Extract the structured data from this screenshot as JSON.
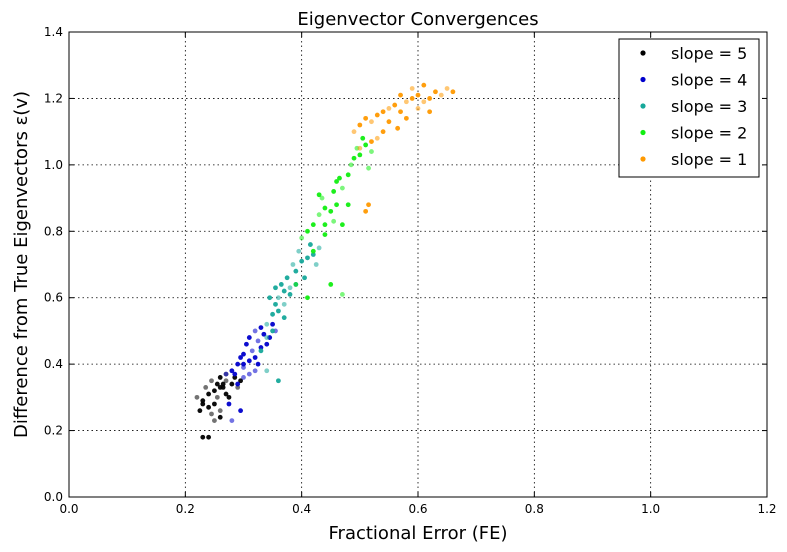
{
  "chart_data": {
    "type": "scatter",
    "title": "Eigenvector Convergences",
    "xlabel": "Fractional Error (FE)",
    "ylabel": "Difference from True Eigenvectors ε(v)",
    "xlim": [
      0.0,
      1.2
    ],
    "ylim": [
      0.0,
      1.4
    ],
    "x_ticks": [
      "0.0",
      "0.2",
      "0.4",
      "0.6",
      "0.8",
      "1.0",
      "1.2"
    ],
    "y_ticks": [
      "0.0",
      "0.2",
      "0.4",
      "0.6",
      "0.8",
      "1.0",
      "1.2",
      "1.4"
    ],
    "grid": true,
    "legend_position": "top-right",
    "series": [
      {
        "name": "slope = 5",
        "color": "#000000",
        "points": [
          [
            0.22,
            0.3
          ],
          [
            0.23,
            0.29
          ],
          [
            0.24,
            0.31
          ],
          [
            0.235,
            0.33
          ],
          [
            0.25,
            0.32
          ],
          [
            0.26,
            0.33
          ],
          [
            0.245,
            0.35
          ],
          [
            0.255,
            0.34
          ],
          [
            0.265,
            0.33
          ],
          [
            0.27,
            0.35
          ],
          [
            0.28,
            0.34
          ],
          [
            0.25,
            0.28
          ],
          [
            0.26,
            0.26
          ],
          [
            0.24,
            0.27
          ],
          [
            0.23,
            0.28
          ],
          [
            0.255,
            0.3
          ],
          [
            0.27,
            0.31
          ],
          [
            0.285,
            0.36
          ],
          [
            0.29,
            0.33
          ],
          [
            0.295,
            0.35
          ],
          [
            0.26,
            0.36
          ],
          [
            0.27,
            0.37
          ],
          [
            0.23,
            0.18
          ],
          [
            0.24,
            0.18
          ],
          [
            0.25,
            0.23
          ],
          [
            0.26,
            0.24
          ],
          [
            0.225,
            0.26
          ],
          [
            0.245,
            0.25
          ],
          [
            0.275,
            0.3
          ],
          [
            0.265,
            0.34
          ]
        ]
      },
      {
        "name": "slope = 4",
        "color": "#0000cc",
        "points": [
          [
            0.27,
            0.37
          ],
          [
            0.28,
            0.38
          ],
          [
            0.29,
            0.4
          ],
          [
            0.3,
            0.39
          ],
          [
            0.31,
            0.41
          ],
          [
            0.3,
            0.43
          ],
          [
            0.315,
            0.44
          ],
          [
            0.32,
            0.42
          ],
          [
            0.305,
            0.46
          ],
          [
            0.325,
            0.47
          ],
          [
            0.33,
            0.45
          ],
          [
            0.31,
            0.48
          ],
          [
            0.32,
            0.5
          ],
          [
            0.335,
            0.49
          ],
          [
            0.33,
            0.51
          ],
          [
            0.3,
            0.36
          ],
          [
            0.29,
            0.34
          ],
          [
            0.285,
            0.37
          ],
          [
            0.28,
            0.23
          ],
          [
            0.295,
            0.26
          ],
          [
            0.275,
            0.28
          ],
          [
            0.32,
            0.38
          ],
          [
            0.34,
            0.46
          ],
          [
            0.345,
            0.48
          ],
          [
            0.31,
            0.37
          ],
          [
            0.295,
            0.42
          ],
          [
            0.35,
            0.52
          ],
          [
            0.355,
            0.5
          ],
          [
            0.3,
            0.4
          ],
          [
            0.325,
            0.4
          ]
        ]
      },
      {
        "name": "slope = 3",
        "color": "#16a89a",
        "points": [
          [
            0.34,
            0.52
          ],
          [
            0.35,
            0.55
          ],
          [
            0.355,
            0.58
          ],
          [
            0.36,
            0.6
          ],
          [
            0.37,
            0.62
          ],
          [
            0.365,
            0.64
          ],
          [
            0.38,
            0.63
          ],
          [
            0.375,
            0.66
          ],
          [
            0.39,
            0.68
          ],
          [
            0.385,
            0.7
          ],
          [
            0.4,
            0.71
          ],
          [
            0.41,
            0.72
          ],
          [
            0.395,
            0.74
          ],
          [
            0.42,
            0.73
          ],
          [
            0.415,
            0.76
          ],
          [
            0.43,
            0.75
          ],
          [
            0.36,
            0.56
          ],
          [
            0.345,
            0.6
          ],
          [
            0.37,
            0.58
          ],
          [
            0.38,
            0.61
          ],
          [
            0.35,
            0.5
          ],
          [
            0.34,
            0.48
          ],
          [
            0.33,
            0.44
          ],
          [
            0.36,
            0.35
          ],
          [
            0.34,
            0.38
          ],
          [
            0.405,
            0.66
          ],
          [
            0.39,
            0.64
          ],
          [
            0.425,
            0.7
          ],
          [
            0.37,
            0.54
          ],
          [
            0.355,
            0.63
          ]
        ]
      },
      {
        "name": "slope = 2",
        "color": "#11ee11",
        "points": [
          [
            0.4,
            0.78
          ],
          [
            0.41,
            0.8
          ],
          [
            0.42,
            0.82
          ],
          [
            0.43,
            0.85
          ],
          [
            0.44,
            0.87
          ],
          [
            0.45,
            0.86
          ],
          [
            0.435,
            0.9
          ],
          [
            0.455,
            0.92
          ],
          [
            0.46,
            0.88
          ],
          [
            0.47,
            0.93
          ],
          [
            0.465,
            0.96
          ],
          [
            0.48,
            0.97
          ],
          [
            0.485,
            1.0
          ],
          [
            0.49,
            1.02
          ],
          [
            0.5,
            1.03
          ],
          [
            0.495,
            1.05
          ],
          [
            0.51,
            1.06
          ],
          [
            0.505,
            1.08
          ],
          [
            0.515,
            0.99
          ],
          [
            0.42,
            0.74
          ],
          [
            0.44,
            0.79
          ],
          [
            0.455,
            0.83
          ],
          [
            0.47,
            0.82
          ],
          [
            0.48,
            0.88
          ],
          [
            0.39,
            0.64
          ],
          [
            0.41,
            0.6
          ],
          [
            0.45,
            0.64
          ],
          [
            0.47,
            0.61
          ],
          [
            0.43,
            0.91
          ],
          [
            0.46,
            0.95
          ],
          [
            0.52,
            1.04
          ],
          [
            0.44,
            0.82
          ]
        ]
      },
      {
        "name": "slope = 1",
        "color": "#ff9900",
        "points": [
          [
            0.49,
            1.1
          ],
          [
            0.5,
            1.12
          ],
          [
            0.51,
            1.14
          ],
          [
            0.52,
            1.13
          ],
          [
            0.53,
            1.15
          ],
          [
            0.54,
            1.16
          ],
          [
            0.55,
            1.17
          ],
          [
            0.56,
            1.18
          ],
          [
            0.57,
            1.16
          ],
          [
            0.58,
            1.19
          ],
          [
            0.59,
            1.2
          ],
          [
            0.6,
            1.21
          ],
          [
            0.61,
            1.19
          ],
          [
            0.62,
            1.2
          ],
          [
            0.63,
            1.22
          ],
          [
            0.64,
            1.21
          ],
          [
            0.55,
            1.13
          ],
          [
            0.54,
            1.1
          ],
          [
            0.53,
            1.08
          ],
          [
            0.565,
            1.11
          ],
          [
            0.58,
            1.14
          ],
          [
            0.6,
            1.17
          ],
          [
            0.62,
            1.16
          ],
          [
            0.52,
            1.07
          ],
          [
            0.5,
            1.05
          ],
          [
            0.515,
            0.88
          ],
          [
            0.51,
            0.86
          ],
          [
            0.65,
            1.23
          ],
          [
            0.66,
            1.22
          ],
          [
            0.57,
            1.21
          ],
          [
            0.59,
            1.23
          ],
          [
            0.61,
            1.24
          ]
        ]
      }
    ]
  }
}
